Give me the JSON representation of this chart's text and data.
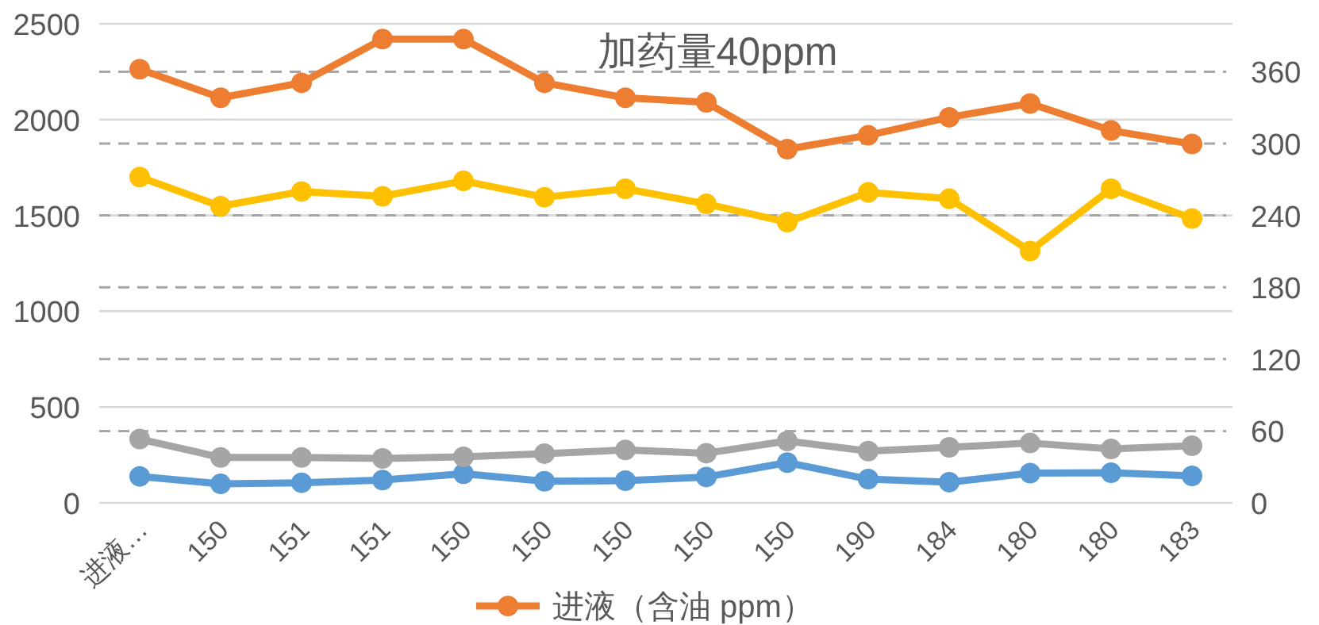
{
  "chart_data": {
    "type": "line",
    "title": "加药量40ppm",
    "categories": [
      "进液…",
      "150",
      "151",
      "151",
      "150",
      "150",
      "150",
      "150",
      "150",
      "190",
      "184",
      "180",
      "180",
      "183"
    ],
    "series": [
      {
        "name": "进液（含油 ppm）",
        "color": "#ed7d31",
        "values": [
          2263,
          2114,
          2192,
          2420,
          2420,
          2192,
          2114,
          2090,
          1846,
          1918,
          2012,
          2084,
          1943,
          1873
        ]
      },
      {
        "color": "#ffc000",
        "values": [
          1700,
          1548,
          1625,
          1600,
          1680,
          1595,
          1639,
          1560,
          1465,
          1620,
          1587,
          1314,
          1639,
          1484
        ]
      },
      {
        "color": "#a5a5a5",
        "values": [
          333,
          237,
          237,
          232,
          240,
          257,
          276,
          259,
          323,
          270,
          290,
          312,
          281,
          298
        ]
      },
      {
        "color": "#5b9bd5",
        "values": [
          138,
          99,
          105,
          119,
          152,
          113,
          116,
          135,
          210,
          124,
          108,
          155,
          157,
          141
        ]
      }
    ],
    "ylim": [
      0,
      2500
    ],
    "yticks": [
      0,
      500,
      1000,
      1500,
      2000,
      2500
    ],
    "y2lim": [
      0,
      400
    ],
    "y2ticks": [
      0,
      60,
      120,
      180,
      240,
      300,
      360
    ],
    "grid": true,
    "legend": "bottom",
    "marker": "circle",
    "line_style": "solid"
  }
}
